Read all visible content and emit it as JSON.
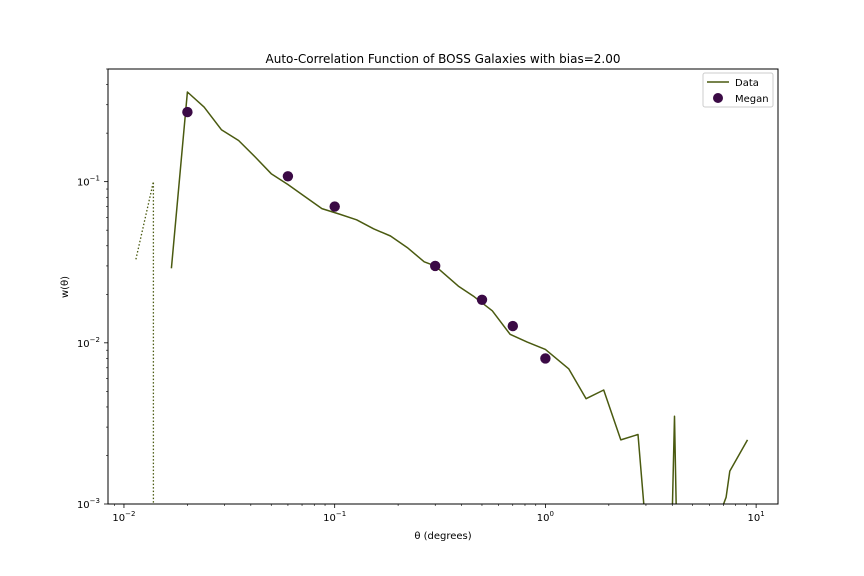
{
  "chart_data": {
    "type": "line",
    "title": "Auto-Correlation Function of BOSS Galaxies with bias=2.00",
    "xlabel": "θ (degrees)",
    "ylabel": "w(θ)",
    "xscale": "log",
    "yscale": "log",
    "xlim": [
      0.0084,
      12.7
    ],
    "ylim": [
      0.001,
      0.5
    ],
    "x_ticks": [
      0.01,
      0.1,
      1,
      10
    ],
    "x_tick_labels": [
      {
        "base": "10",
        "exp": "−2"
      },
      {
        "base": "10",
        "exp": "−1"
      },
      {
        "base": "10",
        "exp": "0"
      },
      {
        "base": "10",
        "exp": "1"
      }
    ],
    "y_ticks": [
      0.001,
      0.01,
      0.1
    ],
    "y_tick_labels": [
      {
        "base": "10",
        "exp": "−3"
      },
      {
        "base": "10",
        "exp": "−2"
      },
      {
        "base": "10",
        "exp": "−1"
      }
    ],
    "legend_position": "top-right",
    "grid": false,
    "colors": {
      "line": "#4a5a10",
      "points": "#3b0a45"
    },
    "series": [
      {
        "name": "Data",
        "kind": "line",
        "x": [
          0.0168,
          0.02,
          0.024,
          0.029,
          0.035,
          0.042,
          0.05,
          0.06,
          0.072,
          0.087,
          0.105,
          0.127,
          0.153,
          0.184,
          0.221,
          0.266,
          0.3,
          0.386,
          0.46,
          0.56,
          0.68,
          0.82,
          1.0,
          1.29,
          1.56,
          1.89,
          2.28,
          2.75,
          2.95,
          3.33,
          4.0,
          4.1,
          4.18,
          4.25,
          5.0,
          6.8,
          7.2,
          7.5,
          9.1
        ],
        "y": [
          0.029,
          0.36,
          0.29,
          0.21,
          0.18,
          0.142,
          0.112,
          0.096,
          0.081,
          0.068,
          0.063,
          0.058,
          0.051,
          0.046,
          0.039,
          0.0318,
          0.03,
          0.0225,
          0.0193,
          0.0158,
          0.0113,
          0.0101,
          0.0091,
          0.0069,
          0.0045,
          0.0051,
          0.0025,
          0.0027,
          0.0009,
          0.0009,
          0.0009,
          0.0035,
          0.0009,
          0.0009,
          0.0009,
          0.0009,
          0.0011,
          0.0016,
          0.0025
        ]
      },
      {
        "name": "",
        "kind": "dotted",
        "x": [
          0.0114,
          0.0138,
          0.0138
        ],
        "y": [
          0.033,
          0.1,
          0.0009
        ]
      },
      {
        "name": "Megan",
        "kind": "scatter",
        "x": [
          0.02,
          0.06,
          0.1,
          0.3,
          0.5,
          0.7,
          1.0
        ],
        "y": [
          0.27,
          0.108,
          0.07,
          0.03,
          0.0185,
          0.0127,
          0.008
        ]
      }
    ]
  }
}
